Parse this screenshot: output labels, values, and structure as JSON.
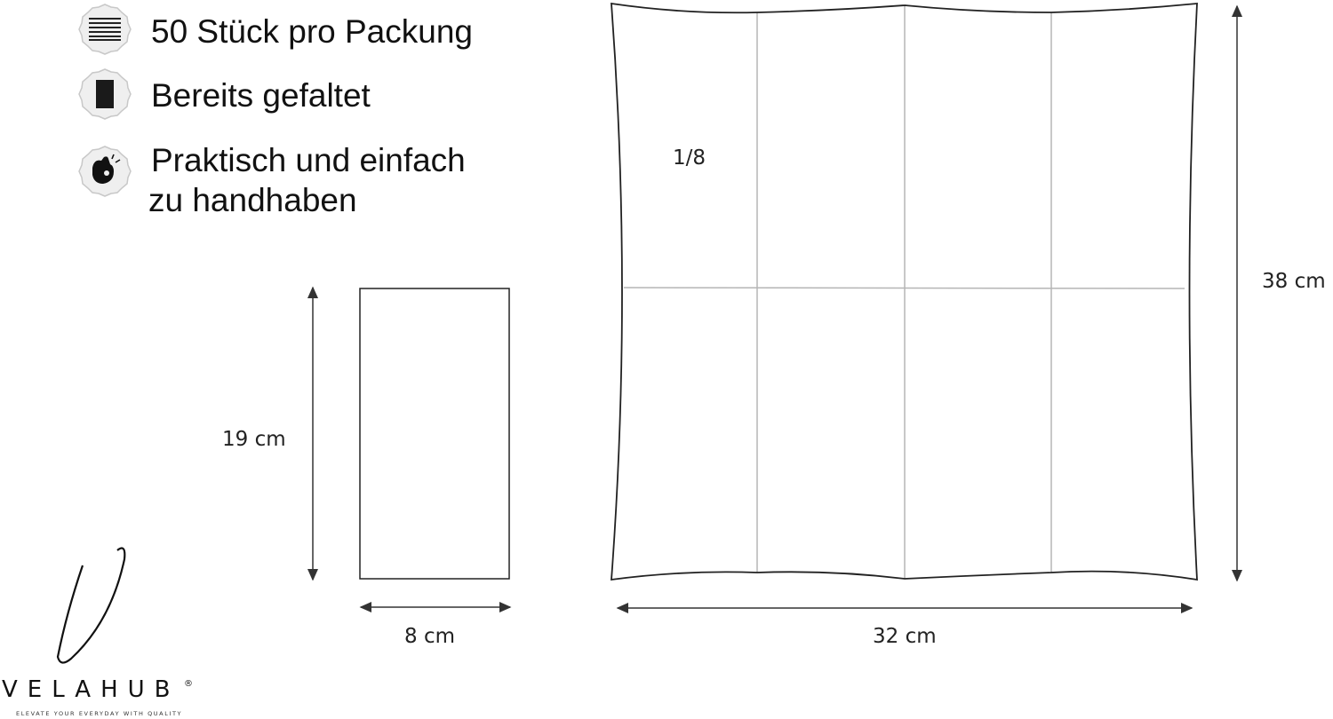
{
  "features": [
    {
      "icon": "stack-lines-icon",
      "lines": [
        "50 Stück pro Packung"
      ]
    },
    {
      "icon": "folded-napkin-icon",
      "lines": [
        "Bereits gefaltet"
      ]
    },
    {
      "icon": "ok-hand-icon",
      "lines": [
        "Praktisch und einfach",
        "zu handhaben"
      ]
    }
  ],
  "folded": {
    "height_label": "19 cm",
    "width_label": "8 cm"
  },
  "unfolded": {
    "height_label": "38 cm",
    "width_label": "32 cm",
    "section_label": "1/8"
  },
  "brand": {
    "name": "VELAHUB",
    "registered": "®",
    "tagline": "ELEVATE YOUR EVERYDAY WITH QUALITY"
  },
  "colors": {
    "line": "#222222",
    "fold": "#b5b5b5",
    "badge": "#efefef"
  }
}
